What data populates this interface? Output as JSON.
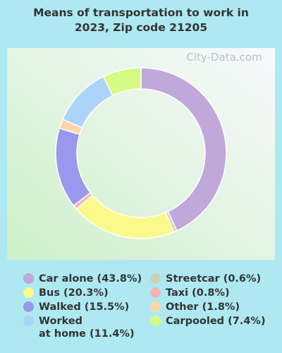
{
  "chart_data": {
    "type": "donut",
    "title": "Means of transportation to work in\n2023, Zip code 21205",
    "watermark": "City-Data.com",
    "categories": [
      "Car alone (43.8%)",
      "Streetcar (0.6%)",
      "Bus (20.3%)",
      "Taxi (0.8%)",
      "Walked (15.5%)",
      "Other (1.8%)",
      "Worked\nat home (11.4%)",
      "Carpooled (7.4%)"
    ],
    "values": [
      43.8,
      0.6,
      20.3,
      0.8,
      15.5,
      1.8,
      11.4,
      7.4
    ],
    "colors": [
      "#c0a8da",
      "#c9d5b2",
      "#fcf98c",
      "#f3b6b6",
      "#9a98ec",
      "#fcd6ab",
      "#abd4f8",
      "#d5fc82"
    ]
  }
}
